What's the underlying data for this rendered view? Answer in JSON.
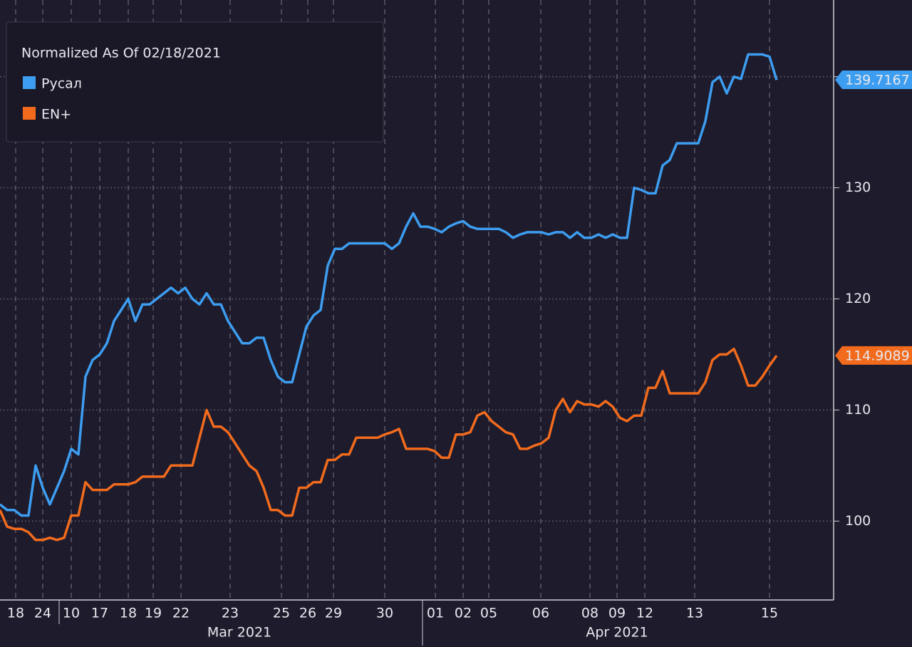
{
  "chart_data": {
    "type": "line",
    "legend_title": "Normalized As Of 02/18/2021",
    "x": [
      0,
      1,
      2,
      3,
      4,
      5,
      6,
      7,
      8,
      9,
      10,
      11,
      12,
      13,
      14,
      15,
      16,
      17,
      18,
      19,
      20,
      21,
      22,
      23,
      24,
      25,
      26,
      27,
      28,
      29,
      30,
      31,
      32,
      33,
      34,
      35,
      36,
      37,
      38,
      39,
      40,
      41,
      42,
      43,
      44,
      45,
      46,
      47,
      48,
      49,
      50,
      51,
      52,
      53,
      54,
      55,
      56,
      57,
      58,
      59,
      60,
      61,
      62,
      63,
      64,
      65,
      66,
      67,
      68,
      69,
      70,
      71,
      72,
      73,
      74,
      75,
      76,
      77,
      78,
      79,
      80,
      81,
      82,
      83,
      84,
      85,
      86,
      87,
      88,
      89,
      90,
      91,
      92,
      93,
      94,
      95,
      96,
      97,
      98,
      99,
      100,
      101,
      102,
      103,
      104,
      105,
      106,
      107,
      108,
      109
    ],
    "series": [
      {
        "name": "Русал",
        "color": "#3d9df0",
        "last_value": 139.7167,
        "values": [
          101.5,
          101,
          101,
          100.5,
          100.5,
          105,
          103,
          101.5,
          103,
          104.5,
          106.5,
          106,
          113,
          114.5,
          115,
          116,
          118,
          119,
          120,
          118,
          119.5,
          119.5,
          120,
          120.5,
          121,
          120.5,
          121,
          120,
          119.5,
          120.5,
          119.5,
          119.5,
          118,
          117,
          116,
          116,
          116.5,
          116.5,
          114.5,
          113,
          112.5,
          112.5,
          115,
          117.5,
          118.5,
          119,
          123,
          124.5,
          124.5,
          125,
          125,
          125,
          125,
          125,
          125,
          124.5,
          125,
          126.5,
          127.7,
          126.5,
          126.5,
          126.3,
          126,
          126.5,
          126.8,
          127,
          126.5,
          126.3,
          126.3,
          126.3,
          126.3,
          126,
          125.5,
          125.8,
          126,
          126,
          126,
          125.8,
          126,
          126,
          125.5,
          126,
          125.5,
          125.5,
          125.8,
          125.5,
          125.8,
          125.5,
          125.5,
          130,
          129.8,
          129.5,
          129.5,
          132,
          132.5,
          134,
          134,
          134,
          134,
          136,
          139.5,
          140,
          138.5,
          140,
          139.8,
          142,
          142,
          142,
          141.8,
          139.7
        ]
      },
      {
        "name": "EN+",
        "color": "#f26b1d",
        "last_value": 114.9089,
        "values": [
          101,
          99.5,
          99.3,
          99.3,
          99,
          98.3,
          98.3,
          98.5,
          98.3,
          98.5,
          100.5,
          100.5,
          103.5,
          102.8,
          102.8,
          102.8,
          103.3,
          103.3,
          103.3,
          103.5,
          104,
          104,
          104,
          104,
          105,
          105,
          105,
          105,
          107.5,
          110,
          108.5,
          108.5,
          108,
          107,
          106,
          105,
          104.5,
          103,
          101,
          101,
          100.5,
          100.5,
          103,
          103,
          103.5,
          103.5,
          105.5,
          105.5,
          106,
          106,
          107.5,
          107.5,
          107.5,
          107.5,
          107.8,
          108,
          108.3,
          106.5,
          106.5,
          106.5,
          106.5,
          106.3,
          105.7,
          105.7,
          107.8,
          107.8,
          108,
          109.5,
          109.8,
          109,
          108.5,
          108,
          107.8,
          106.5,
          106.5,
          106.8,
          107,
          107.5,
          110,
          111,
          109.8,
          110.8,
          110.5,
          110.5,
          110.3,
          110.8,
          110.3,
          109.3,
          109,
          109.5,
          109.5,
          112,
          112,
          113.5,
          111.5,
          111.5,
          111.5,
          111.5,
          111.5,
          112.5,
          114.5,
          115,
          115,
          115.5,
          114,
          112.2,
          112.2,
          113,
          114,
          114.9
        ]
      }
    ],
    "xlim": [
      0,
      117
    ],
    "xticks": [
      {
        "value": 2.2,
        "label": "18"
      },
      {
        "value": 6.0,
        "label": "24"
      },
      {
        "value": 10.0,
        "label": "10"
      },
      {
        "value": 14.0,
        "label": "17"
      },
      {
        "value": 18.0,
        "label": "18"
      },
      {
        "value": 21.5,
        "label": "19"
      },
      {
        "value": 25.4,
        "label": "22"
      },
      {
        "value": 32.3,
        "label": "23"
      },
      {
        "value": 39.5,
        "label": "25"
      },
      {
        "value": 43.2,
        "label": "26"
      },
      {
        "value": 46.8,
        "label": "29"
      },
      {
        "value": 54.0,
        "label": "30"
      },
      {
        "value": 61.1,
        "label": "01"
      },
      {
        "value": 65.0,
        "label": "02"
      },
      {
        "value": 68.6,
        "label": "05"
      },
      {
        "value": 75.9,
        "label": "06"
      },
      {
        "value": 82.8,
        "label": "08"
      },
      {
        "value": 86.6,
        "label": "09"
      },
      {
        "value": 90.5,
        "label": "12"
      },
      {
        "value": 97.5,
        "label": "13"
      },
      {
        "value": 108.0,
        "label": "15"
      }
    ],
    "xgroups": [
      {
        "value": 33.6,
        "label": "Mar 2021"
      },
      {
        "value": 86.6,
        "label": "Apr 2021"
      }
    ],
    "ylim": [
      92.9,
      146.9
    ],
    "yticks": [
      100,
      110,
      120,
      130,
      140
    ],
    "grid": true
  }
}
